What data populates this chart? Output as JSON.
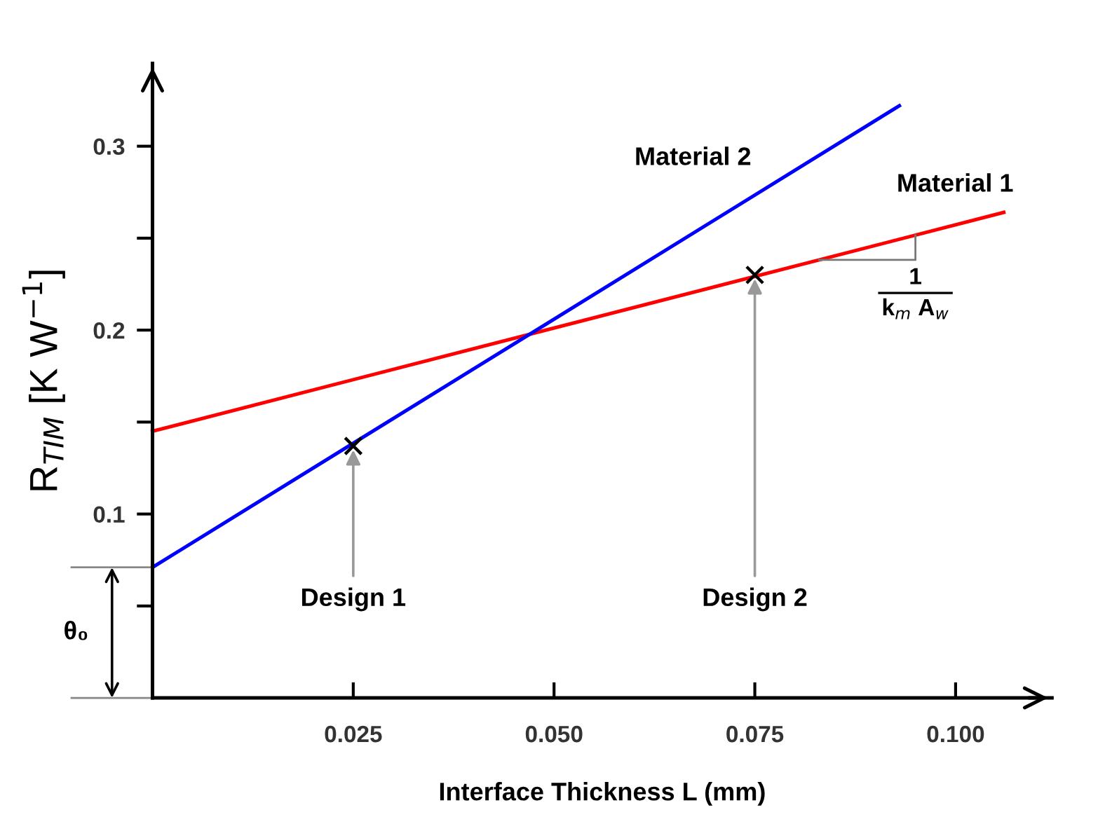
{
  "chart_data": {
    "type": "line",
    "xlabel": "Interface Thickness L (mm)",
    "ylabel": "R$_{TIM}$ [K W$^{−1}$]",
    "series": [
      {
        "name": "Material 1",
        "color": "#ff0000",
        "x": [
          0,
          0.106
        ],
        "values": [
          0.145,
          0.264
        ]
      },
      {
        "name": "Material 2",
        "color": "#0000ff",
        "x": [
          0,
          0.093
        ],
        "values": [
          0.071,
          0.322
        ]
      },
      {
        "type": "scatter",
        "marker": "cross",
        "color": "#000000",
        "x": [
          0.025,
          0.075
        ],
        "values": [
          0.137,
          0.23
        ]
      }
    ],
    "annotations": [
      {
        "text": "Design 1",
        "x": 0.025,
        "y": 0.137
      },
      {
        "text": "Design 2",
        "x": 0.075,
        "y": 0.23
      },
      "θ₀",
      "1",
      "k$_{m}$ A$_{w}$"
    ],
    "xlim": [
      0,
      0.112
    ],
    "ylim": [
      0,
      0.345
    ],
    "xticks": [
      0.025,
      {
        "value": 0.05,
        "label": "0.050"
      },
      0.075,
      {
        "value": 0.1,
        "label": "0.100"
      }
    ],
    "yticks": [
      {
        "value": 0.05,
        "label": null
      },
      0.1,
      {
        "value": 0.15,
        "label": null
      },
      0.2,
      {
        "value": 0.25,
        "label": null
      },
      0.3
    ],
    "grid": false,
    "legend": false
  }
}
